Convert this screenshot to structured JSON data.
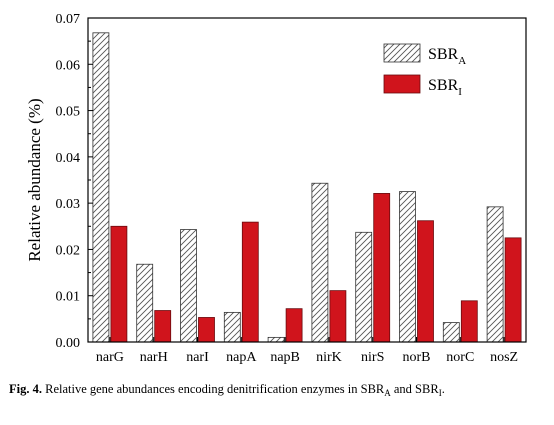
{
  "chart_data": {
    "type": "bar",
    "ylabel": "Relative abundance (%)",
    "xlabel": "",
    "ylim": [
      0,
      0.07
    ],
    "yticks": [
      "0.00",
      "0.01",
      "0.02",
      "0.03",
      "0.04",
      "0.05",
      "0.06",
      "0.07"
    ],
    "categories": [
      "narG",
      "narH",
      "narI",
      "napA",
      "napB",
      "nirK",
      "nirS",
      "norB",
      "norC",
      "nosZ"
    ],
    "series": [
      {
        "name": "SBR",
        "subscript": "A",
        "style": "hatched",
        "values": [
          0.0668,
          0.0168,
          0.0243,
          0.0064,
          0.001,
          0.0343,
          0.0237,
          0.0325,
          0.0042,
          0.0292
        ]
      },
      {
        "name": "SBR",
        "subscript": "I",
        "style": "solid",
        "values": [
          0.025,
          0.0068,
          0.0053,
          0.0259,
          0.0072,
          0.0111,
          0.0321,
          0.0262,
          0.0089,
          0.0225
        ]
      }
    ],
    "legend_position": "top-right",
    "grid": false,
    "colors": {
      "solid": "#d0141c",
      "hatch": "#555555",
      "axis": "#000000"
    }
  },
  "caption": {
    "label": "Fig. 4.",
    "text_before": "Relative gene abundances encoding denitrification enzymes in SBR",
    "sub_a": "A",
    "text_mid": " and SBR",
    "sub_b": "I",
    "text_after": "."
  }
}
